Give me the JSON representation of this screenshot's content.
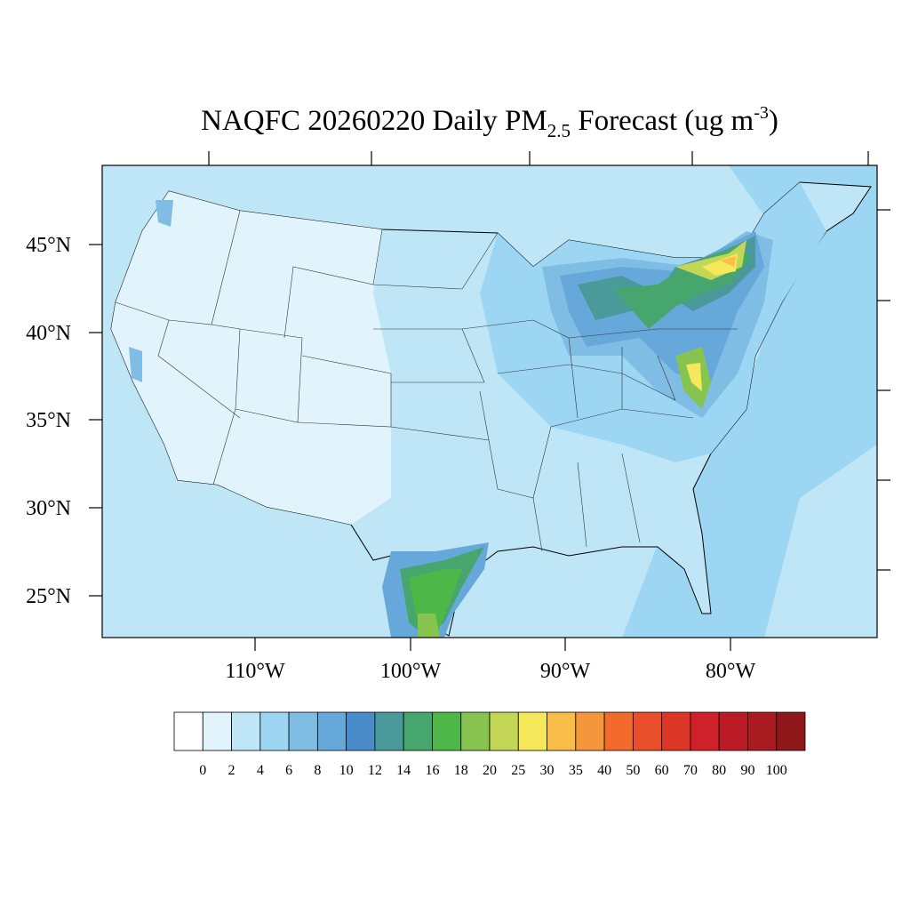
{
  "map": {
    "title": {
      "main": "NAQFC 20260220 Daily PM",
      "sub": "2.5",
      "mid": " Forecast (ug m",
      "sup": "-3",
      "end": ")"
    },
    "lat_labels": [
      "45°N",
      "40°N",
      "35°N",
      "30°N",
      "25°N"
    ],
    "lon_labels": [
      "110°W",
      "100°W",
      "90°W",
      "80°W"
    ],
    "colorbar": {
      "colors": [
        "#ffffff",
        "#e1f3fb",
        "#bfe6f7",
        "#9dd6f2",
        "#80bde5",
        "#67a8db",
        "#4a8cc9",
        "#4a9a9a",
        "#47a56e",
        "#4db848",
        "#86c44f",
        "#c3d655",
        "#f5e85a",
        "#f8be48",
        "#f6963c",
        "#f26b2d",
        "#e94e2a",
        "#dc3626",
        "#cf2129",
        "#bb1b25",
        "#a91a21",
        "#8e1719"
      ],
      "levels": [
        0,
        2,
        4,
        6,
        8,
        10,
        12,
        14,
        16,
        18,
        20,
        25,
        30,
        35,
        40,
        50,
        60,
        70,
        80,
        90,
        100
      ]
    }
  }
}
